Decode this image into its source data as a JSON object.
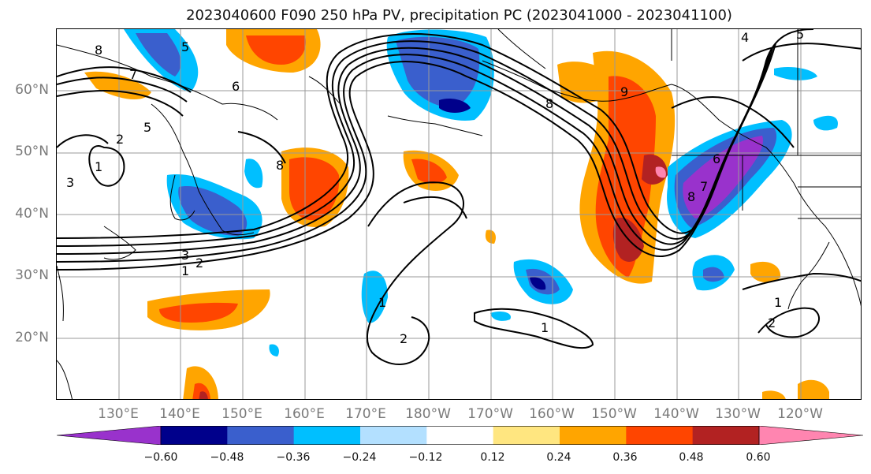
{
  "title": "2023040600 F090 250 hPa PV, precipitation PC (2023041000 - 2023041100)",
  "lat_labels": [
    "60°N",
    "50°N",
    "40°N",
    "30°N",
    "20°N"
  ],
  "lon_labels": [
    "130°E",
    "140°E",
    "150°E",
    "160°E",
    "170°E",
    "180°W",
    "170°W",
    "160°W",
    "150°W",
    "140°W",
    "130°W",
    "120°W"
  ],
  "colorbar": {
    "ticks": [
      "−0.60",
      "−0.48",
      "−0.36",
      "−0.24",
      "−0.12",
      "0.12",
      "0.24",
      "0.36",
      "0.48",
      "0.60"
    ],
    "colors": [
      "#9932cc",
      "#00008b",
      "#3a5fcd",
      "#00bfff",
      "#b3e0ff",
      "#ffffff",
      "#ffe680",
      "#ffa500",
      "#ff4500",
      "#b22222",
      "#ff85b0"
    ]
  },
  "contour_labels": [
    "8",
    "7",
    "5",
    "3",
    "1",
    "2",
    "5",
    "6",
    "8",
    "3",
    "2",
    "1",
    "8",
    "1",
    "2",
    "1",
    "4",
    "5",
    "6",
    "7",
    "8",
    "9",
    "1",
    "2"
  ],
  "palette": {
    "neg1": "#b3e0ff",
    "neg2": "#00bfff",
    "neg3": "#3a5fcd",
    "neg4": "#00008b",
    "neg5": "#9932cc",
    "pos1": "#ffe680",
    "pos2": "#ffa500",
    "pos3": "#ff4500",
    "pos4": "#b22222",
    "pos5": "#ff85b0"
  }
}
